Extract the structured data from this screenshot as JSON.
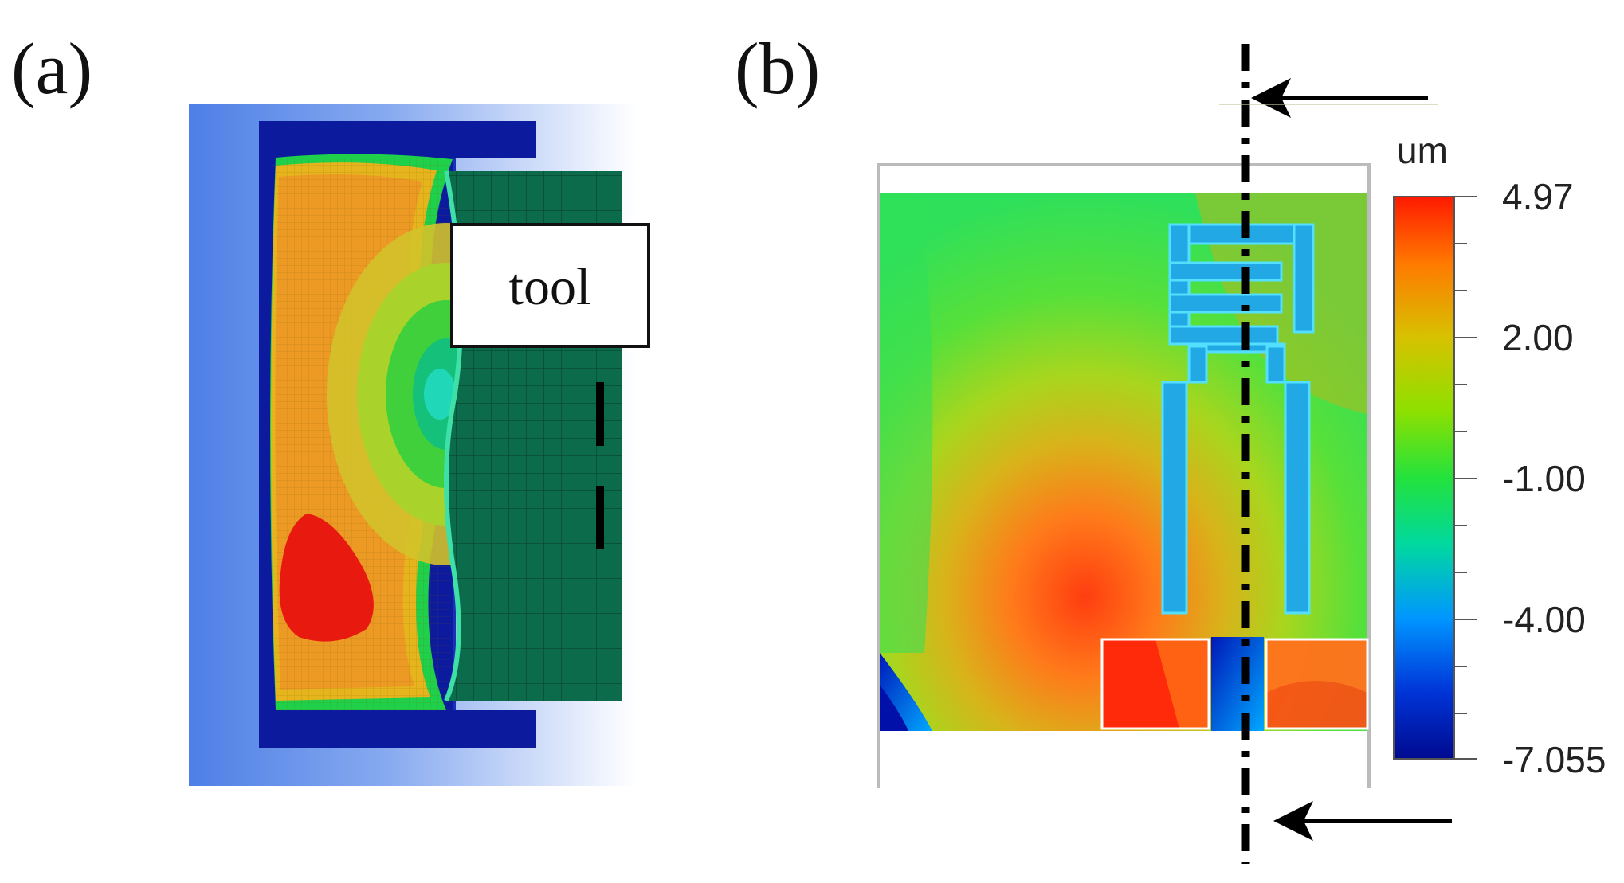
{
  "panels": {
    "a": {
      "label": "(a)",
      "tool_label": "tool"
    },
    "b": {
      "label": "(b)"
    }
  },
  "colorbar": {
    "unit": "um",
    "tick_labels": [
      "4.97",
      "2.00",
      "-1.00",
      "-4.00",
      "-7.055"
    ],
    "colors": [
      "#ff1a00",
      "#ff7a00",
      "#d7c100",
      "#8fe000",
      "#23e23c",
      "#00d8a0",
      "#0096ff",
      "#0035d8",
      "#000a90"
    ]
  }
}
